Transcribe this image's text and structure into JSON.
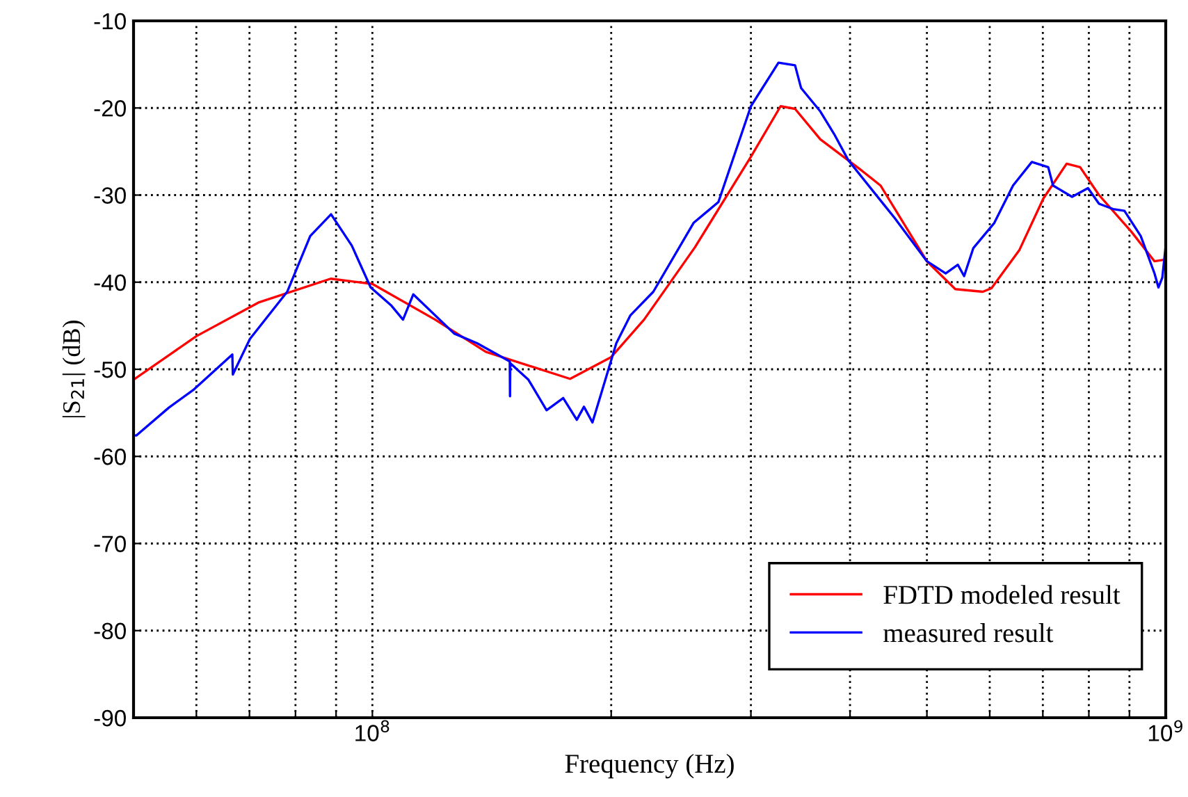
{
  "chart_data": {
    "type": "line",
    "xlabel": "Frequency (Hz)",
    "ylabel": "|S$_{21}$| (dB)",
    "log": "x",
    "grid": true,
    "legend": "bottom right",
    "line_style": "solid",
    "marker": "none",
    "xlim": [
      50000000.0,
      1000000000.0
    ],
    "ylim": [
      -90,
      -10
    ],
    "xticks": [
      {
        "value": 60000000.0,
        "label": null
      },
      {
        "value": 70000000.0,
        "label": null
      },
      {
        "value": 80000000.0,
        "label": null
      },
      {
        "value": 90000000.0,
        "label": null
      },
      {
        "value": 100000000.0,
        "label": "10$^{8}$"
      },
      {
        "value": 200000000.0,
        "label": null
      },
      {
        "value": 300000000.0,
        "label": null
      },
      {
        "value": 400000000.0,
        "label": null
      },
      {
        "value": 500000000.0,
        "label": null
      },
      {
        "value": 600000000.0,
        "label": null
      },
      {
        "value": 700000000.0,
        "label": null
      },
      {
        "value": 800000000.0,
        "label": null
      },
      {
        "value": 900000000.0,
        "label": null
      },
      {
        "value": 1000000000.0,
        "label": "10$^{9}$"
      }
    ],
    "yticks": [
      -90,
      -80,
      -70,
      -60,
      -50,
      -40,
      -30,
      -20,
      -10
    ],
    "series": [
      {
        "name": "FDTD modeled result",
        "color": "#ff0000",
        "x": [
          50000000.0,
          60000000.0,
          72000000.0,
          88600000.0,
          100000000.0,
          120000000.0,
          139000000.0,
          177500000.0,
          200000000.0,
          220000000.0,
          255000000.0,
          300000000.0,
          327000000.0,
          341000000.0,
          367000000.0,
          414000000.0,
          437000000.0,
          500000000.0,
          543000000.0,
          588000000.0,
          603000000.0,
          654000000.0,
          701000000.0,
          750000000.0,
          780000000.0,
          824000000.0,
          905000000.0,
          968000000.0,
          1000000000.0
        ],
        "values": [
          -51.2,
          -46.2,
          -42.3,
          -39.6,
          -40.2,
          -44.3,
          -48.0,
          -51.1,
          -48.6,
          -44.3,
          -36.0,
          -25.6,
          -19.8,
          -20.1,
          -23.6,
          -27.2,
          -28.9,
          -37.6,
          -40.8,
          -41.1,
          -40.7,
          -36.3,
          -30.4,
          -26.4,
          -26.8,
          -30.0,
          -34.2,
          -37.6,
          -37.4
        ]
      },
      {
        "name": "measured result",
        "color": "#0000ff",
        "x": [
          50100000.0,
          50400000.0,
          55400000.0,
          59600000.0,
          66600000.0,
          66700000.0,
          70100000.0,
          78100000.0,
          83500000.0,
          88700000.0,
          94200000.0,
          99500000.0,
          105700000.0,
          109300000.0,
          112600000.0,
          126800000.0,
          135500000.0,
          149000000.0,
          149100000.0,
          149200000.0,
          157300000.0,
          165800000.0,
          174000000.0,
          181000000.0,
          184800000.0,
          189400000.0,
          195000000.0,
          203000000.0,
          211500000.0,
          226000000.0,
          254000000.0,
          273000000.0,
          300000000.0,
          325000000.0,
          341000000.0,
          347000000.0,
          367000000.0,
          382000000.0,
          398000000.0,
          455000000.0,
          500000000.0,
          528000000.0,
          547000000.0,
          557000000.0,
          572000000.0,
          608000000.0,
          642000000.0,
          678000000.0,
          711000000.0,
          721000000.0,
          762000000.0,
          798000000.0,
          824000000.0,
          858000000.0,
          887000000.0,
          930000000.0,
          968000000.0,
          979000000.0,
          990000000.0,
          1000000000.0
        ],
        "values": [
          -57.6,
          -57.6,
          -54.4,
          -52.3,
          -48.3,
          -50.6,
          -46.5,
          -41.1,
          -34.7,
          -32.2,
          -35.8,
          -40.6,
          -42.7,
          -44.3,
          -41.4,
          -45.9,
          -47.0,
          -49.1,
          -53.1,
          -49.3,
          -51.2,
          -54.7,
          -53.3,
          -55.8,
          -54.3,
          -56.1,
          -52.3,
          -47.0,
          -43.8,
          -41.1,
          -33.2,
          -30.8,
          -19.8,
          -14.8,
          -15.1,
          -17.7,
          -20.4,
          -23.0,
          -26.0,
          -32.6,
          -37.6,
          -39.0,
          -38.0,
          -39.3,
          -36.1,
          -33.2,
          -28.9,
          -26.2,
          -26.8,
          -28.9,
          -30.2,
          -29.2,
          -31.0,
          -31.6,
          -31.8,
          -34.7,
          -39.0,
          -40.6,
          -39.5,
          -35.8
        ]
      }
    ]
  }
}
